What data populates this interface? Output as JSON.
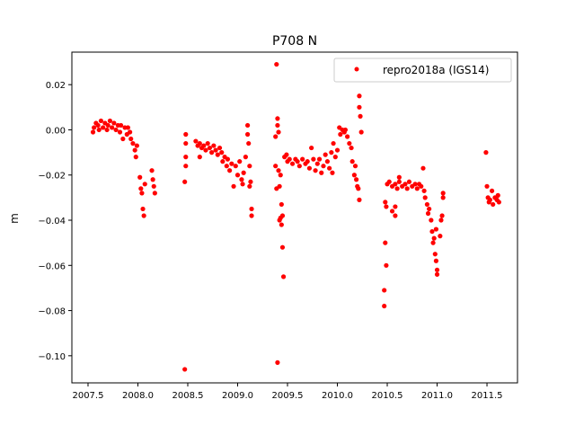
{
  "chart_data": {
    "type": "scatter",
    "title": "P708 N",
    "xlabel": "",
    "ylabel": "m",
    "xlim": [
      2007.338,
      2011.806
    ],
    "ylim": [
      -0.112,
      0.0344
    ],
    "xticks": [
      "2007.5",
      "2008.0",
      "2008.5",
      "2009.0",
      "2009.5",
      "2010.0",
      "2010.5",
      "2011.0",
      "2011.5"
    ],
    "yticks": [
      "0.02",
      "0.00",
      "−0.02",
      "−0.04",
      "−0.06",
      "−0.08",
      "−0.10"
    ],
    "grid": false,
    "legend": "top-right",
    "series": [
      {
        "name": "repro2018a (IGS14)",
        "color": "#ff0000",
        "points": [
          [
            2007.55,
            -0.001
          ],
          [
            2007.56,
            0.001
          ],
          [
            2007.58,
            0.003
          ],
          [
            2007.6,
            0.002
          ],
          [
            2007.61,
            0.0
          ],
          [
            2007.63,
            0.004
          ],
          [
            2007.65,
            0.001
          ],
          [
            2007.67,
            0.003
          ],
          [
            2007.69,
            0.0
          ],
          [
            2007.7,
            0.002
          ],
          [
            2007.72,
            0.004
          ],
          [
            2007.74,
            0.001
          ],
          [
            2007.76,
            0.003
          ],
          [
            2007.78,
            0.0
          ],
          [
            2007.8,
            0.002
          ],
          [
            2007.82,
            -0.001
          ],
          [
            2007.83,
            0.002
          ],
          [
            2007.85,
            -0.004
          ],
          [
            2007.87,
            0.001
          ],
          [
            2007.89,
            -0.002
          ],
          [
            2007.9,
            0.001
          ],
          [
            2007.92,
            -0.001
          ],
          [
            2007.93,
            -0.004
          ],
          [
            2007.95,
            -0.006
          ],
          [
            2007.97,
            -0.009
          ],
          [
            2007.98,
            -0.012
          ],
          [
            2007.99,
            -0.007
          ],
          [
            2008.02,
            -0.021
          ],
          [
            2008.03,
            -0.026
          ],
          [
            2008.04,
            -0.028
          ],
          [
            2008.05,
            -0.035
          ],
          [
            2008.06,
            -0.038
          ],
          [
            2008.07,
            -0.024
          ],
          [
            2008.14,
            -0.018
          ],
          [
            2008.15,
            -0.022
          ],
          [
            2008.16,
            -0.025
          ],
          [
            2008.17,
            -0.028
          ],
          [
            2008.48,
            -0.002
          ],
          [
            2008.48,
            -0.006
          ],
          [
            2008.48,
            -0.012
          ],
          [
            2008.48,
            -0.016
          ],
          [
            2008.47,
            -0.023
          ],
          [
            2008.47,
            -0.106
          ],
          [
            2008.58,
            -0.005
          ],
          [
            2008.6,
            -0.007
          ],
          [
            2008.62,
            -0.006
          ],
          [
            2008.64,
            -0.008
          ],
          [
            2008.66,
            -0.007
          ],
          [
            2008.68,
            -0.009
          ],
          [
            2008.7,
            -0.006
          ],
          [
            2008.72,
            -0.008
          ],
          [
            2008.74,
            -0.01
          ],
          [
            2008.76,
            -0.007
          ],
          [
            2008.78,
            -0.009
          ],
          [
            2008.8,
            -0.011
          ],
          [
            2008.82,
            -0.008
          ],
          [
            2008.84,
            -0.01
          ],
          [
            2008.85,
            -0.014
          ],
          [
            2008.87,
            -0.012
          ],
          [
            2008.89,
            -0.016
          ],
          [
            2008.9,
            -0.013
          ],
          [
            2008.92,
            -0.018
          ],
          [
            2008.94,
            -0.015
          ],
          [
            2008.96,
            -0.025
          ],
          [
            2008.98,
            -0.016
          ],
          [
            2009.0,
            -0.02
          ],
          [
            2009.02,
            -0.014
          ],
          [
            2009.04,
            -0.022
          ],
          [
            2009.05,
            -0.024
          ],
          [
            2009.06,
            -0.019
          ],
          [
            2009.08,
            -0.012
          ],
          [
            2009.1,
            0.002
          ],
          [
            2009.1,
            -0.002
          ],
          [
            2009.11,
            -0.006
          ],
          [
            2009.12,
            -0.016
          ],
          [
            2009.13,
            -0.023
          ],
          [
            2009.14,
            -0.035
          ],
          [
            2009.14,
            -0.038
          ],
          [
            2009.12,
            -0.025
          ],
          [
            2008.62,
            -0.012
          ],
          [
            2009.39,
            0.029
          ],
          [
            2009.38,
            -0.003
          ],
          [
            2009.38,
            -0.016
          ],
          [
            2009.39,
            -0.026
          ],
          [
            2009.4,
            0.005
          ],
          [
            2009.4,
            0.002
          ],
          [
            2009.41,
            -0.001
          ],
          [
            2009.41,
            -0.018
          ],
          [
            2009.42,
            -0.025
          ],
          [
            2009.42,
            -0.04
          ],
          [
            2009.43,
            -0.039
          ],
          [
            2009.44,
            -0.033
          ],
          [
            2009.45,
            -0.052
          ],
          [
            2009.46,
            -0.065
          ],
          [
            2009.4,
            -0.103
          ],
          [
            2009.43,
            -0.02
          ],
          [
            2009.45,
            -0.038
          ],
          [
            2009.44,
            -0.042
          ],
          [
            2009.47,
            -0.012
          ],
          [
            2009.49,
            -0.011
          ],
          [
            2009.5,
            -0.014
          ],
          [
            2009.52,
            -0.013
          ],
          [
            2009.55,
            -0.015
          ],
          [
            2009.58,
            -0.013
          ],
          [
            2009.6,
            -0.014
          ],
          [
            2009.62,
            -0.016
          ],
          [
            2009.65,
            -0.013
          ],
          [
            2009.68,
            -0.015
          ],
          [
            2009.7,
            -0.014
          ],
          [
            2009.72,
            -0.017
          ],
          [
            2009.74,
            -0.008
          ],
          [
            2009.76,
            -0.013
          ],
          [
            2009.78,
            -0.018
          ],
          [
            2009.8,
            -0.015
          ],
          [
            2009.82,
            -0.013
          ],
          [
            2009.84,
            -0.019
          ],
          [
            2009.86,
            -0.016
          ],
          [
            2009.88,
            -0.011
          ],
          [
            2009.9,
            -0.014
          ],
          [
            2009.92,
            -0.017
          ],
          [
            2009.94,
            -0.01
          ],
          [
            2009.96,
            -0.006
          ],
          [
            2009.98,
            -0.012
          ],
          [
            2010.0,
            -0.009
          ],
          [
            2009.95,
            -0.019
          ],
          [
            2010.02,
            0.001
          ],
          [
            2010.03,
            -0.002
          ],
          [
            2010.05,
            0.0
          ],
          [
            2010.07,
            -0.001
          ],
          [
            2010.08,
            0.0
          ],
          [
            2010.1,
            -0.003
          ],
          [
            2010.12,
            -0.006
          ],
          [
            2010.14,
            -0.008
          ],
          [
            2010.15,
            -0.014
          ],
          [
            2010.17,
            -0.02
          ],
          [
            2010.18,
            -0.016
          ],
          [
            2010.19,
            -0.022
          ],
          [
            2010.2,
            -0.025
          ],
          [
            2010.22,
            -0.031
          ],
          [
            2010.22,
            0.015
          ],
          [
            2010.22,
            0.01
          ],
          [
            2010.23,
            0.006
          ],
          [
            2010.24,
            -0.001
          ],
          [
            2010.21,
            -0.026
          ],
          [
            2010.48,
            -0.032
          ],
          [
            2010.49,
            -0.034
          ],
          [
            2010.48,
            -0.05
          ],
          [
            2010.49,
            -0.06
          ],
          [
            2010.47,
            -0.071
          ],
          [
            2010.47,
            -0.078
          ],
          [
            2010.5,
            -0.024
          ],
          [
            2010.52,
            -0.023
          ],
          [
            2010.55,
            -0.025
          ],
          [
            2010.58,
            -0.024
          ],
          [
            2010.6,
            -0.026
          ],
          [
            2010.62,
            -0.023
          ],
          [
            2010.65,
            -0.025
          ],
          [
            2010.68,
            -0.024
          ],
          [
            2010.7,
            -0.026
          ],
          [
            2010.72,
            -0.023
          ],
          [
            2010.75,
            -0.025
          ],
          [
            2010.78,
            -0.024
          ],
          [
            2010.8,
            -0.026
          ],
          [
            2010.82,
            -0.024
          ],
          [
            2010.84,
            -0.025
          ],
          [
            2010.86,
            -0.017
          ],
          [
            2010.87,
            -0.027
          ],
          [
            2010.88,
            -0.03
          ],
          [
            2010.9,
            -0.033
          ],
          [
            2010.91,
            -0.037
          ],
          [
            2010.92,
            -0.035
          ],
          [
            2010.94,
            -0.04
          ],
          [
            2010.95,
            -0.045
          ],
          [
            2010.96,
            -0.05
          ],
          [
            2010.97,
            -0.048
          ],
          [
            2010.98,
            -0.055
          ],
          [
            2010.99,
            -0.058
          ],
          [
            2011.0,
            -0.062
          ],
          [
            2011.0,
            -0.064
          ],
          [
            2010.99,
            -0.044
          ],
          [
            2011.03,
            -0.047
          ],
          [
            2011.04,
            -0.04
          ],
          [
            2011.05,
            -0.038
          ],
          [
            2011.06,
            -0.028
          ],
          [
            2011.06,
            -0.03
          ],
          [
            2010.58,
            -0.034
          ],
          [
            2010.58,
            -0.038
          ],
          [
            2010.62,
            -0.021
          ],
          [
            2010.55,
            -0.036
          ],
          [
            2011.49,
            -0.01
          ],
          [
            2011.5,
            -0.025
          ],
          [
            2011.51,
            -0.03
          ],
          [
            2011.52,
            -0.032
          ],
          [
            2011.53,
            -0.031
          ],
          [
            2011.55,
            -0.027
          ],
          [
            2011.56,
            -0.033
          ],
          [
            2011.58,
            -0.03
          ],
          [
            2011.6,
            -0.031
          ],
          [
            2011.61,
            -0.029
          ],
          [
            2011.62,
            -0.032
          ]
        ]
      }
    ]
  }
}
